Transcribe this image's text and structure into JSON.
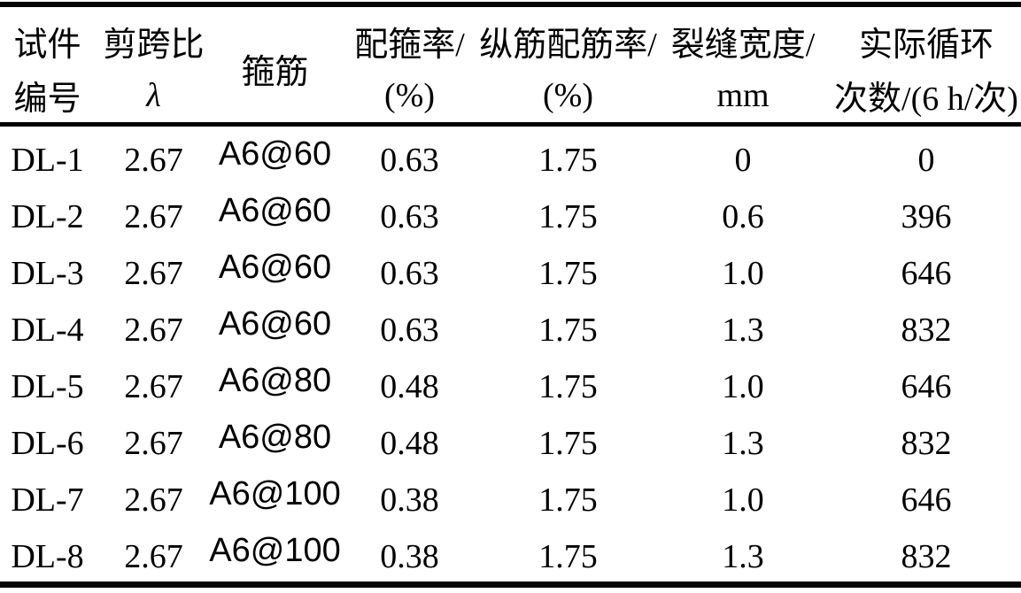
{
  "colors": {
    "background": "#ffffff",
    "text": "#000000",
    "rule": "#050505"
  },
  "table": {
    "style": "three-line academic table",
    "columns": [
      {
        "id": "specimen-number",
        "line1": "试件",
        "line2": "编号"
      },
      {
        "id": "shear-span-ratio",
        "line1": "剪跨比",
        "line2": "λ"
      },
      {
        "id": "stirrup",
        "line1": "箍筋",
        "line2": ""
      },
      {
        "id": "stirrup-ratio",
        "line1": "配箍率/",
        "line2": "(%)"
      },
      {
        "id": "longitudinal-ratio",
        "line1": "纵筋配筋率/",
        "line2": "(%)"
      },
      {
        "id": "crack-width",
        "line1": "裂缝宽度/",
        "line2": "mm"
      },
      {
        "id": "actual-cycles",
        "line1": "实际循环",
        "line2": "次数/(6 h/次)"
      }
    ],
    "rows": [
      [
        "DL-1",
        "2.67",
        "A6@60",
        "0.63",
        "1.75",
        "0",
        "0"
      ],
      [
        "DL-2",
        "2.67",
        "A6@60",
        "0.63",
        "1.75",
        "0.6",
        "396"
      ],
      [
        "DL-3",
        "2.67",
        "A6@60",
        "0.63",
        "1.75",
        "1.0",
        "646"
      ],
      [
        "DL-4",
        "2.67",
        "A6@60",
        "0.63",
        "1.75",
        "1.3",
        "832"
      ],
      [
        "DL-5",
        "2.67",
        "A6@80",
        "0.48",
        "1.75",
        "1.0",
        "646"
      ],
      [
        "DL-6",
        "2.67",
        "A6@80",
        "0.48",
        "1.75",
        "1.3",
        "832"
      ],
      [
        "DL-7",
        "2.67",
        "A6@100",
        "0.38",
        "1.75",
        "1.0",
        "646"
      ],
      [
        "DL-8",
        "2.67",
        "A6@100",
        "0.38",
        "1.75",
        "1.3",
        "832"
      ]
    ]
  }
}
